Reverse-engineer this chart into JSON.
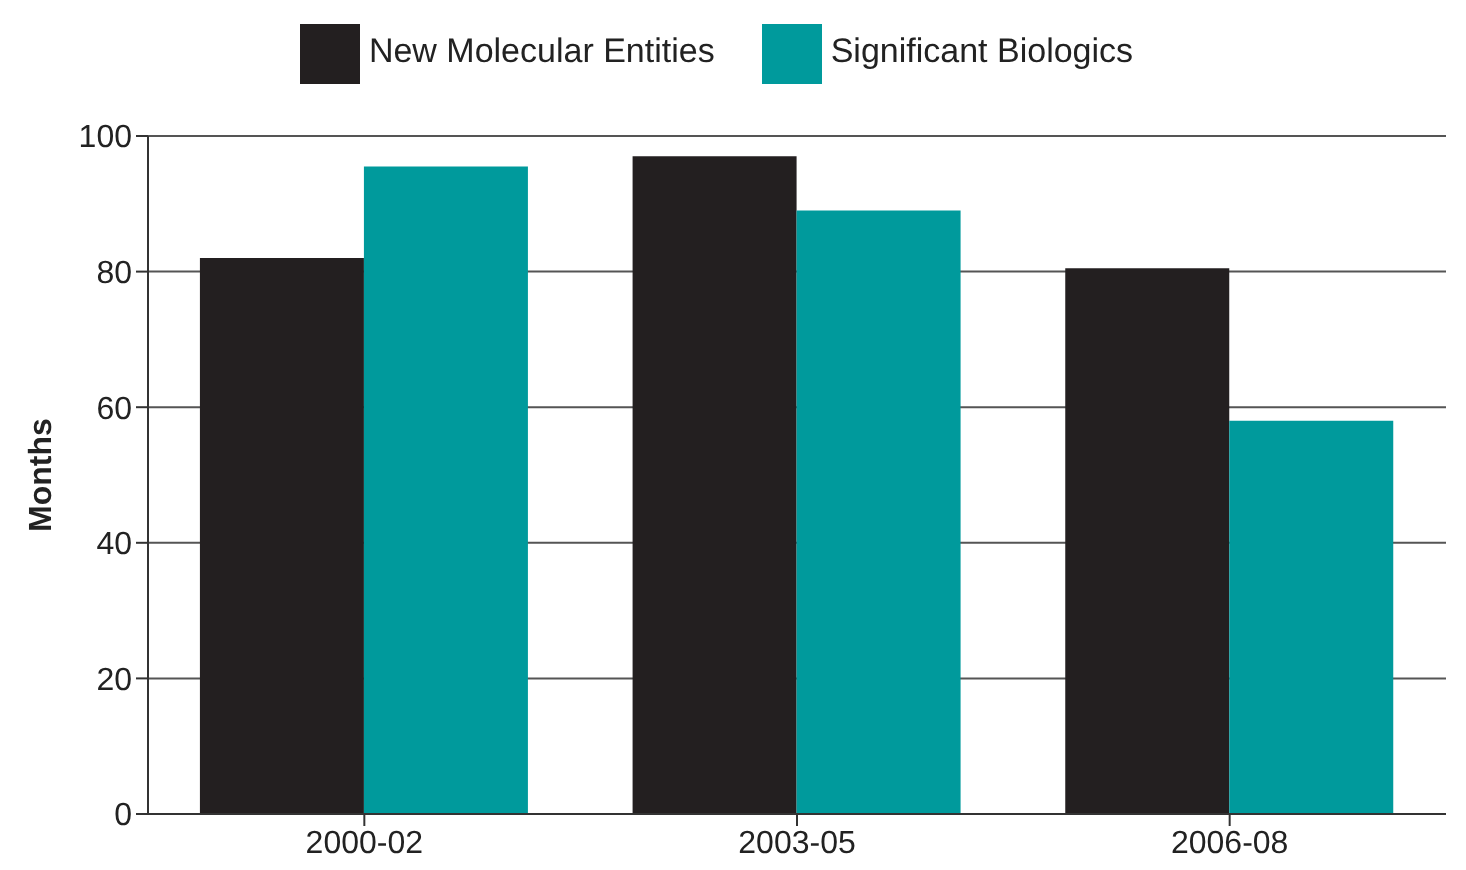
{
  "chart_data": {
    "type": "bar",
    "ylabel": "Months",
    "categories": [
      "2000-02",
      "2003-05",
      "2006-08"
    ],
    "series": [
      {
        "name": "New Molecular Entities",
        "color": "#231f20",
        "values": [
          82,
          97,
          80.5
        ]
      },
      {
        "name": "Significant Biologics",
        "color": "#009a9c",
        "values": [
          95.5,
          89,
          58
        ]
      }
    ],
    "ylim": [
      0,
      100
    ],
    "yticks": [
      0,
      20,
      40,
      60,
      80,
      100
    ],
    "grid": "y",
    "legend": "top"
  }
}
